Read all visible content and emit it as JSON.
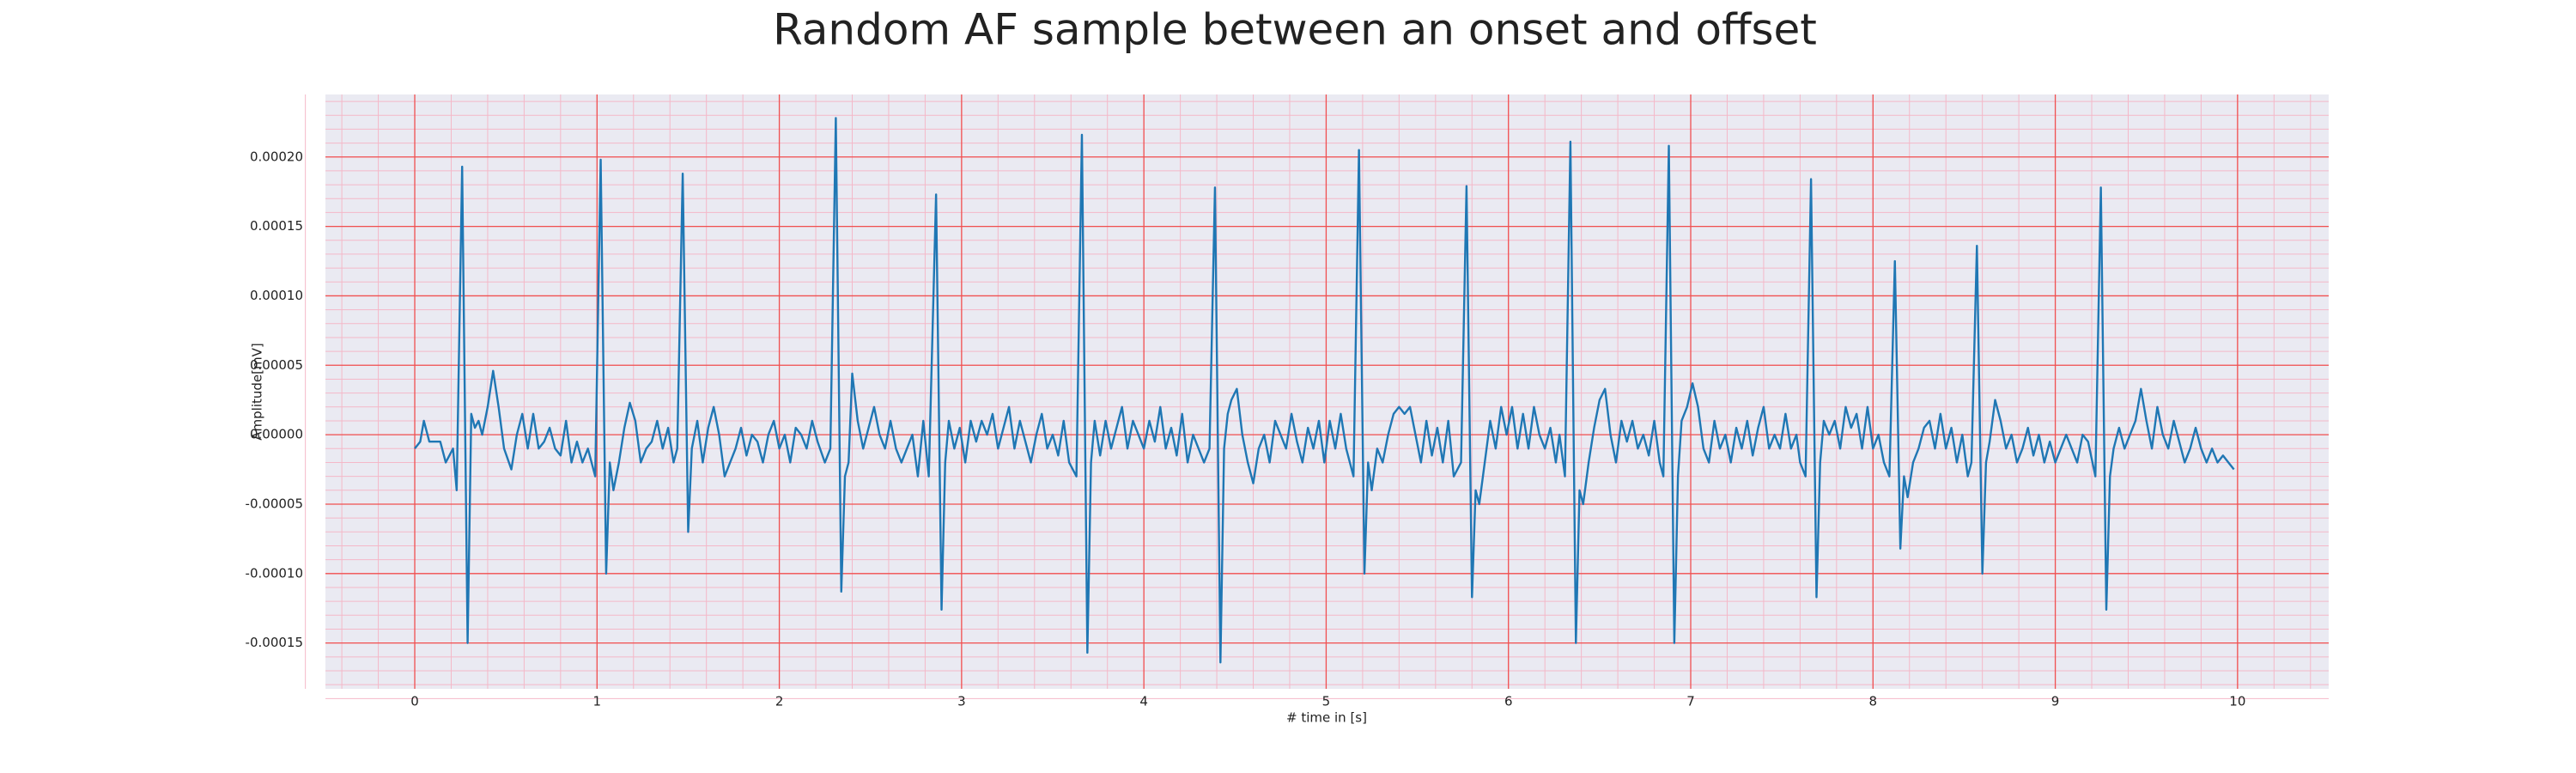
{
  "chart_data": {
    "type": "line",
    "title": "Random AF sample between an onset and offset",
    "xlabel": "# time in [s]",
    "ylabel": "Amplitude[mV]",
    "color": "#1f77b4",
    "grid": true,
    "minor_grid": true,
    "xlim": [
      -0.49,
      10.5
    ],
    "ylim": [
      -0.000183,
      0.000245
    ],
    "xticks": [
      0,
      1,
      2,
      3,
      4,
      5,
      6,
      7,
      8,
      9,
      10
    ],
    "yticks": [
      {
        "value": -0.00015,
        "label": "-0.00015"
      },
      {
        "value": -0.0001,
        "label": "-0.00010"
      },
      {
        "value": -5e-05,
        "label": "-0.00005"
      },
      {
        "value": 0,
        "label": "0.00000"
      },
      {
        "value": 5e-05,
        "label": "0.00005"
      },
      {
        "value": 0.0001,
        "label": "0.00010"
      },
      {
        "value": 0.00015,
        "label": "0.00015"
      },
      {
        "value": 0.0002,
        "label": "0.00020"
      }
    ],
    "x": [
      0.0,
      0.03,
      0.05,
      0.08,
      0.11,
      0.14,
      0.17,
      0.21,
      0.23,
      0.26,
      0.29,
      0.31,
      0.33,
      0.35,
      0.37,
      0.4,
      0.43,
      0.46,
      0.49,
      0.53,
      0.56,
      0.59,
      0.62,
      0.65,
      0.68,
      0.71,
      0.74,
      0.77,
      0.8,
      0.83,
      0.86,
      0.89,
      0.92,
      0.95,
      0.99,
      1.02,
      1.05,
      1.07,
      1.09,
      1.12,
      1.15,
      1.18,
      1.21,
      1.24,
      1.27,
      1.3,
      1.33,
      1.36,
      1.39,
      1.42,
      1.44,
      1.47,
      1.5,
      1.52,
      1.55,
      1.58,
      1.61,
      1.64,
      1.67,
      1.7,
      1.73,
      1.76,
      1.79,
      1.82,
      1.85,
      1.88,
      1.91,
      1.94,
      1.97,
      2.0,
      2.03,
      2.06,
      2.09,
      2.12,
      2.15,
      2.18,
      2.21,
      2.25,
      2.28,
      2.31,
      2.34,
      2.36,
      2.38,
      2.4,
      2.43,
      2.46,
      2.49,
      2.52,
      2.55,
      2.58,
      2.61,
      2.64,
      2.67,
      2.7,
      2.73,
      2.76,
      2.79,
      2.82,
      2.86,
      2.89,
      2.91,
      2.93,
      2.96,
      2.99,
      3.02,
      3.05,
      3.08,
      3.11,
      3.14,
      3.17,
      3.2,
      3.23,
      3.26,
      3.29,
      3.32,
      3.35,
      3.38,
      3.41,
      3.44,
      3.47,
      3.5,
      3.53,
      3.56,
      3.59,
      3.63,
      3.66,
      3.69,
      3.71,
      3.73,
      3.76,
      3.79,
      3.82,
      3.85,
      3.88,
      3.91,
      3.94,
      3.97,
      4.0,
      4.03,
      4.06,
      4.09,
      4.12,
      4.15,
      4.18,
      4.21,
      4.24,
      4.27,
      4.3,
      4.33,
      4.36,
      4.39,
      4.42,
      4.44,
      4.46,
      4.48,
      4.51,
      4.54,
      4.57,
      4.6,
      4.63,
      4.66,
      4.69,
      4.72,
      4.75,
      4.78,
      4.81,
      4.84,
      4.87,
      4.9,
      4.93,
      4.96,
      4.99,
      5.02,
      5.05,
      5.08,
      5.11,
      5.15,
      5.18,
      5.21,
      5.23,
      5.25,
      5.28,
      5.31,
      5.34,
      5.37,
      5.4,
      5.43,
      5.46,
      5.49,
      5.52,
      5.55,
      5.58,
      5.61,
      5.64,
      5.67,
      5.7,
      5.74,
      5.77,
      5.8,
      5.82,
      5.84,
      5.87,
      5.9,
      5.93,
      5.96,
      5.99,
      6.02,
      6.05,
      6.08,
      6.11,
      6.14,
      6.17,
      6.2,
      6.23,
      6.26,
      6.28,
      6.31,
      6.34,
      6.37,
      6.39,
      6.41,
      6.44,
      6.47,
      6.5,
      6.53,
      6.56,
      6.59,
      6.62,
      6.65,
      6.68,
      6.71,
      6.74,
      6.77,
      6.8,
      6.83,
      6.85,
      6.88,
      6.91,
      6.93,
      6.95,
      6.98,
      7.01,
      7.04,
      7.07,
      7.1,
      7.13,
      7.16,
      7.19,
      7.22,
      7.25,
      7.28,
      7.31,
      7.34,
      7.37,
      7.4,
      7.43,
      7.46,
      7.49,
      7.52,
      7.55,
      7.58,
      7.6,
      7.63,
      7.66,
      7.69,
      7.71,
      7.73,
      7.76,
      7.79,
      7.82,
      7.85,
      7.88,
      7.91,
      7.94,
      7.97,
      8.0,
      8.03,
      8.06,
      8.09,
      8.12,
      8.15,
      8.17,
      8.19,
      8.22,
      8.25,
      8.28,
      8.31,
      8.34,
      8.37,
      8.4,
      8.43,
      8.46,
      8.49,
      8.52,
      8.54,
      8.57,
      8.6,
      8.62,
      8.64,
      8.67,
      8.7,
      8.73,
      8.76,
      8.79,
      8.82,
      8.85,
      8.88,
      8.91,
      8.94,
      8.97,
      9.0,
      9.03,
      9.06,
      9.09,
      9.12,
      9.15,
      9.18,
      9.22,
      9.25,
      9.28,
      9.3,
      9.32,
      9.35,
      9.38,
      9.41,
      9.44,
      9.47,
      9.5,
      9.53,
      9.56,
      9.59,
      9.62,
      9.65,
      9.68,
      9.71,
      9.74,
      9.77,
      9.8,
      9.83,
      9.86,
      9.89,
      9.92,
      9.95,
      9.98
    ],
    "values": [
      -1e-05,
      -5e-06,
      1e-05,
      -5e-06,
      -5e-06,
      -5e-06,
      -2e-05,
      -1e-05,
      -4e-05,
      0.000193,
      -0.00015,
      1.5e-05,
      5e-06,
      1e-05,
      0,
      2e-05,
      4.6e-05,
      2e-05,
      -1e-05,
      -2.5e-05,
      0,
      1.5e-05,
      -1e-05,
      1.5e-05,
      -1e-05,
      -5e-06,
      5e-06,
      -1e-05,
      -1.5e-05,
      1e-05,
      -2e-05,
      -5e-06,
      -2e-05,
      -1e-05,
      -3e-05,
      0.000198,
      -0.0001,
      -2e-05,
      -4e-05,
      -2e-05,
      5e-06,
      2.3e-05,
      1e-05,
      -2e-05,
      -1e-05,
      -5e-06,
      1e-05,
      -1e-05,
      5e-06,
      -2e-05,
      -1e-05,
      0.000188,
      -7e-05,
      -1e-05,
      1e-05,
      -2e-05,
      5e-06,
      2e-05,
      0,
      -3e-05,
      -2e-05,
      -1e-05,
      5e-06,
      -1.5e-05,
      0,
      -5e-06,
      -2e-05,
      0,
      1e-05,
      -1e-05,
      0,
      -2e-05,
      5e-06,
      0,
      -1e-05,
      1e-05,
      -5e-06,
      -2e-05,
      -1e-05,
      0.000228,
      -0.000113,
      -3e-05,
      -2e-05,
      4.4e-05,
      1e-05,
      -1e-05,
      5e-06,
      2e-05,
      0,
      -1e-05,
      1e-05,
      -1e-05,
      -2e-05,
      -1e-05,
      0,
      -3e-05,
      1e-05,
      -3e-05,
      0.000173,
      -0.000126,
      -2e-05,
      1e-05,
      -1e-05,
      5e-06,
      -2e-05,
      1e-05,
      -5e-06,
      1e-05,
      0,
      1.5e-05,
      -1e-05,
      5e-06,
      2e-05,
      -1e-05,
      1e-05,
      -5e-06,
      -2e-05,
      0,
      1.5e-05,
      -1e-05,
      0,
      -1.5e-05,
      1e-05,
      -2e-05,
      -3e-05,
      0.000216,
      -0.000157,
      -2e-05,
      1e-05,
      -1.5e-05,
      1e-05,
      -1e-05,
      5e-06,
      2e-05,
      -1e-05,
      1e-05,
      0,
      -1e-05,
      1e-05,
      -5e-06,
      2e-05,
      -1e-05,
      5e-06,
      -1.5e-05,
      1.5e-05,
      -2e-05,
      0,
      -1e-05,
      -2e-05,
      -1e-05,
      0.000178,
      -0.000164,
      -1e-05,
      1.5e-05,
      2.5e-05,
      3.3e-05,
      0,
      -2e-05,
      -3.5e-05,
      -1e-05,
      0,
      -2e-05,
      1e-05,
      0,
      -1e-05,
      1.5e-05,
      -5e-06,
      -2e-05,
      5e-06,
      -1e-05,
      1e-05,
      -2e-05,
      1e-05,
      -1e-05,
      1.5e-05,
      -1e-05,
      -3e-05,
      0.000205,
      -0.0001,
      -2e-05,
      -4e-05,
      -1e-05,
      -2e-05,
      0,
      1.5e-05,
      2e-05,
      1.5e-05,
      2e-05,
      0,
      -2e-05,
      1e-05,
      -1.5e-05,
      5e-06,
      -2e-05,
      1e-05,
      -3e-05,
      -2e-05,
      0.000179,
      -0.000117,
      -4e-05,
      -5e-05,
      -2e-05,
      1e-05,
      -1e-05,
      2e-05,
      0,
      2e-05,
      -1e-05,
      1.5e-05,
      -1e-05,
      2e-05,
      0,
      -1e-05,
      5e-06,
      -2e-05,
      0,
      -3e-05,
      0.000211,
      -0.00015,
      -4e-05,
      -5e-05,
      -2e-05,
      5e-06,
      2.5e-05,
      3.3e-05,
      0,
      -2e-05,
      1e-05,
      -5e-06,
      1e-05,
      -1e-05,
      0,
      -1.5e-05,
      1e-05,
      -2e-05,
      -3e-05,
      0.000208,
      -0.00015,
      -3e-05,
      1e-05,
      2e-05,
      3.7e-05,
      2e-05,
      -1e-05,
      -2e-05,
      1e-05,
      -1e-05,
      0,
      -2e-05,
      5e-06,
      -1e-05,
      1e-05,
      -1.5e-05,
      5e-06,
      2e-05,
      -1e-05,
      0,
      -1e-05,
      1.5e-05,
      -1e-05,
      0,
      -2e-05,
      -3e-05,
      0.000184,
      -0.000117,
      -2e-05,
      1e-05,
      0,
      1e-05,
      -1e-05,
      2e-05,
      5e-06,
      1.5e-05,
      -1e-05,
      2e-05,
      -1e-05,
      0,
      -2e-05,
      -3e-05,
      0.000125,
      -8.2e-05,
      -3e-05,
      -4.5e-05,
      -2e-05,
      -1e-05,
      5e-06,
      1e-05,
      -1e-05,
      1.5e-05,
      -1e-05,
      5e-06,
      -2e-05,
      0,
      -3e-05,
      -2e-05,
      0.000136,
      -0.0001,
      -2e-05,
      -5e-06,
      2.5e-05,
      1e-05,
      -1e-05,
      0,
      -2e-05,
      -1e-05,
      5e-06,
      -1.5e-05,
      0,
      -2e-05,
      -5e-06,
      -2e-05,
      -1e-05,
      0,
      -1e-05,
      -2e-05,
      0,
      -5e-06,
      -3e-05,
      0.000178,
      -0.000126,
      -3e-05,
      -1e-05,
      5e-06,
      -1e-05,
      0,
      1e-05,
      3.3e-05,
      1e-05,
      -1e-05,
      2e-05,
      0,
      -1e-05,
      1e-05,
      -5e-06,
      -2e-05,
      -1e-05,
      5e-06,
      -1e-05,
      -2e-05,
      -1e-05,
      -2e-05,
      -1.5e-05,
      -2e-05,
      -2.5e-05
    ]
  }
}
